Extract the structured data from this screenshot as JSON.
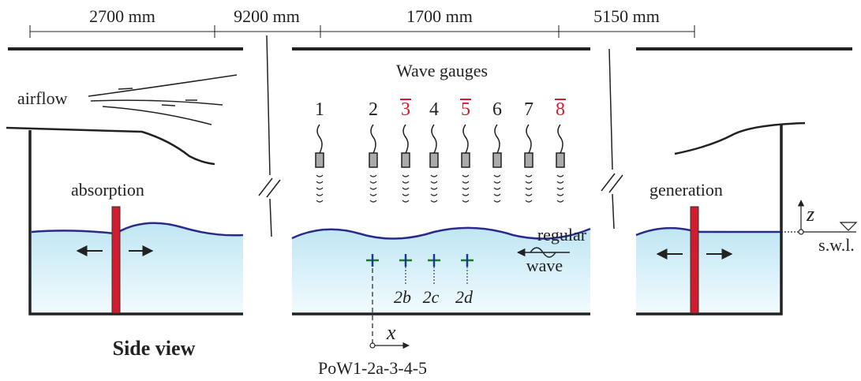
{
  "dimensions": [
    "2700 mm",
    "9200 mm",
    "1700 mm",
    "5150 mm"
  ],
  "labels": {
    "airflow": "airflow",
    "absorption": "absorption",
    "side_view": "Side view",
    "wave_gauges": "Wave gauges",
    "generation": "generation",
    "regular": "regular",
    "wave": "wave",
    "x_axis": "x",
    "z_axis": "z",
    "swl": "s.w.l.",
    "origin": "PoW1-2a-3-4-5"
  },
  "gauges": [
    {
      "label": "1",
      "highlighted": false
    },
    {
      "label": "2",
      "highlighted": false
    },
    {
      "label": "3",
      "highlighted": true
    },
    {
      "label": "4",
      "highlighted": false
    },
    {
      "label": "5",
      "highlighted": true
    },
    {
      "label": "6",
      "highlighted": false
    },
    {
      "label": "7",
      "highlighted": false
    },
    {
      "label": "8",
      "highlighted": true
    }
  ],
  "points": [
    "2b",
    "2c",
    "2d"
  ]
}
